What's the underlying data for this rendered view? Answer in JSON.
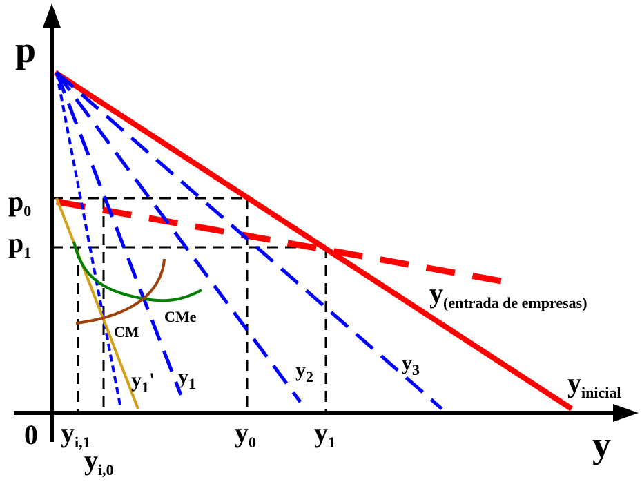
{
  "axes": {
    "y_axis_label": "p",
    "x_axis_label": "y",
    "origin_label": "0"
  },
  "price_labels": {
    "p0": {
      "main": "p",
      "sub": "0"
    },
    "p1": {
      "main": "p",
      "sub": "1"
    }
  },
  "quantity_labels": {
    "yi1": {
      "main": "y",
      "sub": "i,1"
    },
    "yi0": {
      "main": "y",
      "sub": "i,0"
    },
    "y0": {
      "main": "y",
      "sub": "0"
    },
    "y1": {
      "main": "y",
      "sub": "1"
    }
  },
  "curve_labels": {
    "y_entrada": {
      "main": "y",
      "sub": "(entrada de empresas)"
    },
    "y_inicial": {
      "main": "y",
      "sub": "inicial"
    },
    "y1_prime": {
      "main": "y",
      "sub": "1",
      "suffix": "'"
    },
    "y1_firm": {
      "main": "y",
      "sub": "1"
    },
    "y2": {
      "main": "y",
      "sub": "2"
    },
    "y3": {
      "main": "y",
      "sub": "3"
    },
    "cm": "CM",
    "cme": "CMe"
  },
  "colors": {
    "axis": "#000000",
    "market_demand": "#ff0000",
    "firm_demand": "#0000ff",
    "average_cost": "#008000",
    "marginal_cost": "#a0400a",
    "firm_demand_entry": "#d4a017",
    "guides": "#000000"
  }
}
